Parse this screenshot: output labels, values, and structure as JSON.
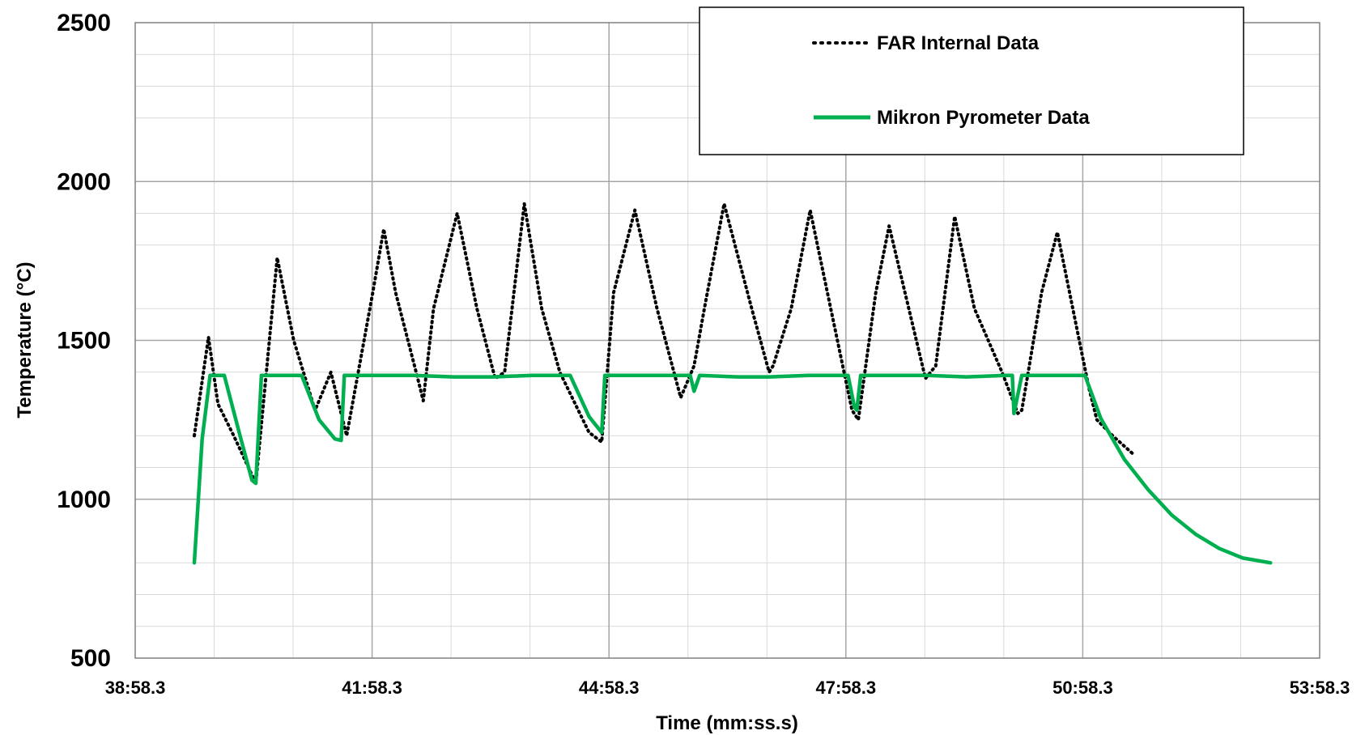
{
  "chart_data": {
    "type": "line",
    "title": "",
    "xlabel": "Time (mm:ss.s)",
    "ylabel": "Temperature (°C)",
    "x_unit": "minutes",
    "xlim": [
      38.972,
      53.972
    ],
    "ylim": [
      500,
      2500
    ],
    "x_ticks": [
      {
        "value": 38.972,
        "label": "38:58.3"
      },
      {
        "value": 41.972,
        "label": "41:58.3"
      },
      {
        "value": 44.972,
        "label": "44:58.3"
      },
      {
        "value": 47.972,
        "label": "47:58.3"
      },
      {
        "value": 50.972,
        "label": "50:58.3"
      },
      {
        "value": 53.972,
        "label": "53:58.3"
      }
    ],
    "y_ticks": [
      500,
      1000,
      1500,
      2000,
      2500
    ],
    "grid": {
      "major": true,
      "minor": true
    },
    "legend": {
      "placement": "top-right"
    },
    "series": [
      {
        "name": "FAR Internal Data",
        "style": "dotted",
        "color": "#000000",
        "x": [
          39.72,
          39.9,
          40.02,
          40.22,
          40.5,
          40.77,
          40.98,
          41.25,
          41.45,
          41.65,
          41.98,
          42.12,
          42.27,
          42.55,
          42.62,
          42.75,
          43.05,
          43.3,
          43.53,
          43.65,
          43.9,
          44.12,
          44.35,
          44.72,
          44.88,
          45.03,
          45.3,
          45.58,
          45.88,
          46.05,
          46.18,
          46.43,
          46.78,
          47.0,
          47.05,
          47.28,
          47.52,
          47.78,
          48.05,
          48.13,
          48.35,
          48.52,
          48.98,
          49.11,
          49.35,
          49.6,
          49.95,
          50.15,
          50.2,
          50.45,
          50.65,
          51.05,
          51.15,
          51.35,
          51.62
        ],
        "y": [
          1200,
          1510,
          1300,
          1200,
          1050,
          1760,
          1500,
          1280,
          1400,
          1200,
          1650,
          1850,
          1650,
          1380,
          1310,
          1600,
          1900,
          1600,
          1380,
          1400,
          1930,
          1600,
          1400,
          1210,
          1180,
          1650,
          1910,
          1600,
          1320,
          1420,
          1600,
          1930,
          1600,
          1400,
          1420,
          1600,
          1910,
          1600,
          1280,
          1250,
          1650,
          1860,
          1380,
          1420,
          1890,
          1600,
          1400,
          1270,
          1280,
          1650,
          1840,
          1350,
          1250,
          1200,
          1140
        ]
      },
      {
        "name": "Mikron Pyrometer Data",
        "style": "solid",
        "color": "#00b050",
        "x": [
          39.72,
          39.82,
          39.92,
          40.1,
          40.3,
          40.45,
          40.5,
          40.57,
          40.66,
          41.08,
          41.3,
          41.5,
          41.58,
          41.62,
          41.68,
          42.5,
          43.0,
          43.5,
          44.0,
          44.48,
          44.72,
          44.88,
          44.92,
          45.0,
          45.5,
          46.0,
          46.05,
          46.12,
          46.6,
          47.0,
          47.5,
          48.0,
          48.08,
          48.11,
          48.16,
          49.0,
          49.5,
          50.0,
          50.08,
          50.1,
          50.2,
          50.7,
          51.0,
          51.2,
          51.5,
          51.8,
          52.1,
          52.4,
          52.7,
          53.0,
          53.35
        ],
        "y": [
          800,
          1190,
          1390,
          1390,
          1200,
          1060,
          1050,
          1390,
          1390,
          1390,
          1250,
          1190,
          1185,
          1390,
          1390,
          1390,
          1385,
          1385,
          1390,
          1390,
          1260,
          1210,
          1390,
          1390,
          1390,
          1390,
          1340,
          1390,
          1385,
          1385,
          1390,
          1390,
          1290,
          1280,
          1390,
          1390,
          1385,
          1390,
          1390,
          1270,
          1390,
          1390,
          1390,
          1255,
          1125,
          1030,
          950,
          890,
          845,
          815,
          800
        ]
      }
    ]
  }
}
